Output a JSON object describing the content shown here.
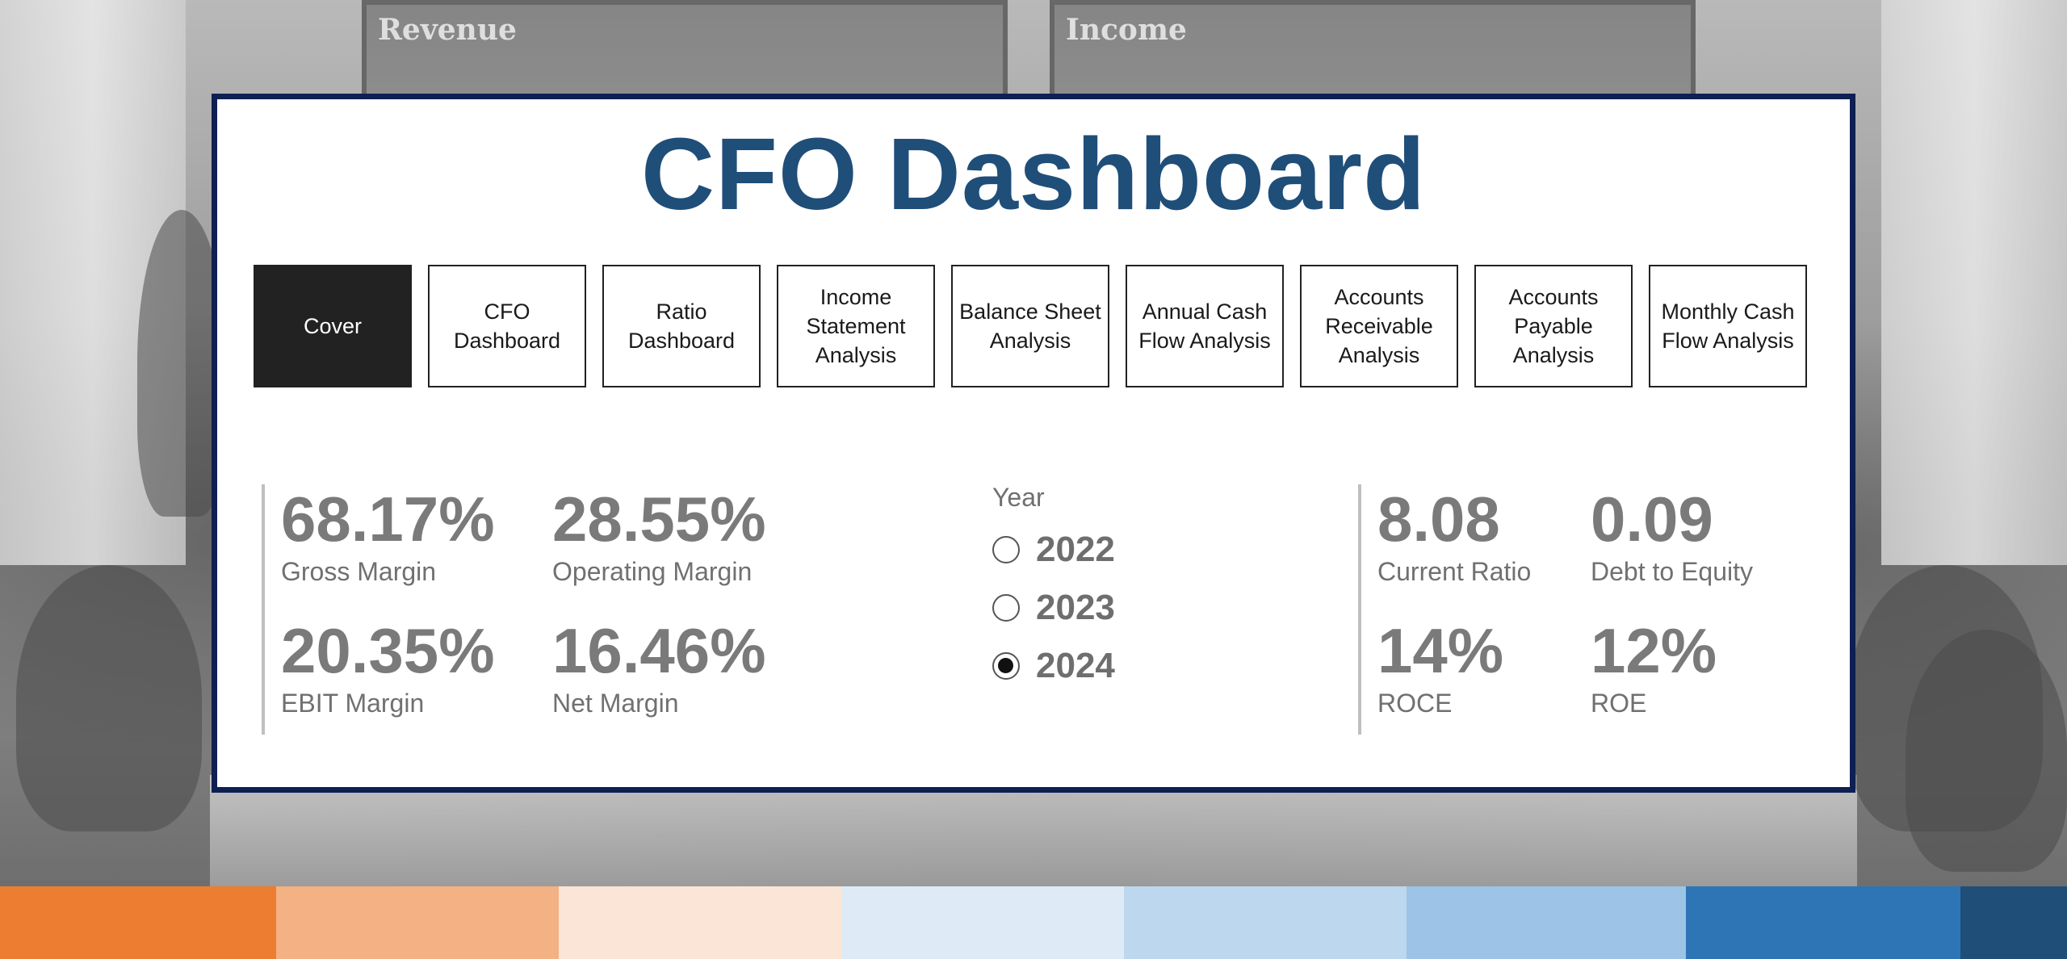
{
  "background": {
    "screens": [
      "Revenue",
      "Income"
    ]
  },
  "title": "CFO Dashboard",
  "nav": [
    {
      "label": "Cover",
      "active": true
    },
    {
      "label": "CFO Dashboard",
      "active": false
    },
    {
      "label": "Ratio Dashboard",
      "active": false
    },
    {
      "label": "Income Statement Analysis",
      "active": false
    },
    {
      "label": "Balance Sheet Analysis",
      "active": false
    },
    {
      "label": "Annual Cash Flow Analysis",
      "active": false
    },
    {
      "label": "Accounts Receivable Analysis",
      "active": false
    },
    {
      "label": "Accounts Payable Analysis",
      "active": false
    },
    {
      "label": "Monthly Cash Flow Analysis",
      "active": false
    }
  ],
  "margins": {
    "gross": {
      "value": "68.17%",
      "label": "Gross Margin"
    },
    "operating": {
      "value": "28.55%",
      "label": "Operating Margin"
    },
    "ebit": {
      "value": "20.35%",
      "label": "EBIT Margin"
    },
    "net": {
      "value": "16.46%",
      "label": "Net Margin"
    }
  },
  "year_filter": {
    "title": "Year",
    "options": [
      {
        "label": "2022",
        "selected": false
      },
      {
        "label": "2023",
        "selected": false
      },
      {
        "label": "2024",
        "selected": true
      }
    ]
  },
  "ratios": {
    "current_ratio": {
      "value": "8.08",
      "label": "Current Ratio"
    },
    "debt_to_equity": {
      "value": "0.09",
      "label": "Debt to Equity"
    },
    "roce": {
      "value": "14%",
      "label": "ROCE"
    },
    "roe": {
      "value": "12%",
      "label": "ROE"
    }
  },
  "colors": {
    "title": "#1f4e79",
    "card_border": "#0e1f52",
    "band": [
      "#ed7d31",
      "#f4b183",
      "#fbe5d6",
      "#deebf7",
      "#bdd7ee",
      "#9dc3e6",
      "#2e75b6",
      "#1f4e79"
    ]
  }
}
